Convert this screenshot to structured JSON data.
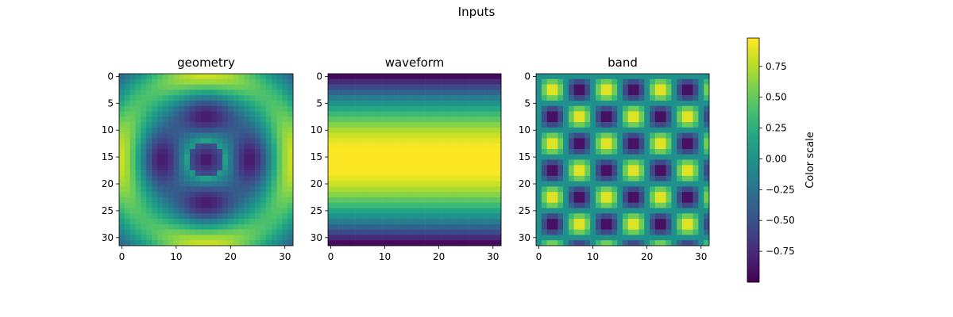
{
  "figure": {
    "title": "Inputs"
  },
  "chart_data": [
    {
      "type": "heatmap",
      "title": "geometry",
      "rows": 32,
      "cols": 32,
      "field": "0.85*cos(pi*r/8) on a symmetric (tiled) grid, r = radius from center; rings peaking near r=8, hole at center",
      "vmin": -1,
      "vmax": 1,
      "xlim": [
        -0.5,
        31.5
      ],
      "ylim": [
        31.5,
        -0.5
      ],
      "xticks": [
        0,
        10,
        20,
        30
      ],
      "yticks": [
        0,
        5,
        10,
        15,
        20,
        25,
        30
      ]
    },
    {
      "type": "heatmap",
      "title": "waveform",
      "rows": 32,
      "cols": 32,
      "field": "row i: sin(pi*i/31), constant across columns",
      "vmin": -1,
      "vmax": 1,
      "xlim": [
        -0.5,
        31.5
      ],
      "ylim": [
        31.5,
        -0.5
      ],
      "xticks": [
        0,
        10,
        20,
        30
      ],
      "yticks": [
        0,
        5,
        10,
        15,
        20,
        25,
        30
      ]
    },
    {
      "type": "heatmap",
      "title": "band",
      "rows": 32,
      "cols": 32,
      "field": "sin(2*pi*x/10)*sin(2*pi*y/10) pattern (checkerboard of yellow/purple squares)",
      "vmin": -1,
      "vmax": 1,
      "xlim": [
        -0.5,
        31.5
      ],
      "ylim": [
        31.5,
        -0.5
      ],
      "xticks": [
        0,
        10,
        20,
        30
      ],
      "yticks": [
        0,
        5,
        10,
        15,
        20,
        25,
        30
      ]
    }
  ],
  "colorbar": {
    "label": "Color scale",
    "colormap": "viridis",
    "range": [
      -1,
      0.98
    ],
    "ticks": [
      -0.75,
      -0.5,
      -0.25,
      0.0,
      0.25,
      0.5,
      0.75
    ],
    "tick_labels": [
      "−0.75",
      "−0.50",
      "−0.25",
      "0.00",
      "0.25",
      "0.50",
      "0.75"
    ]
  }
}
